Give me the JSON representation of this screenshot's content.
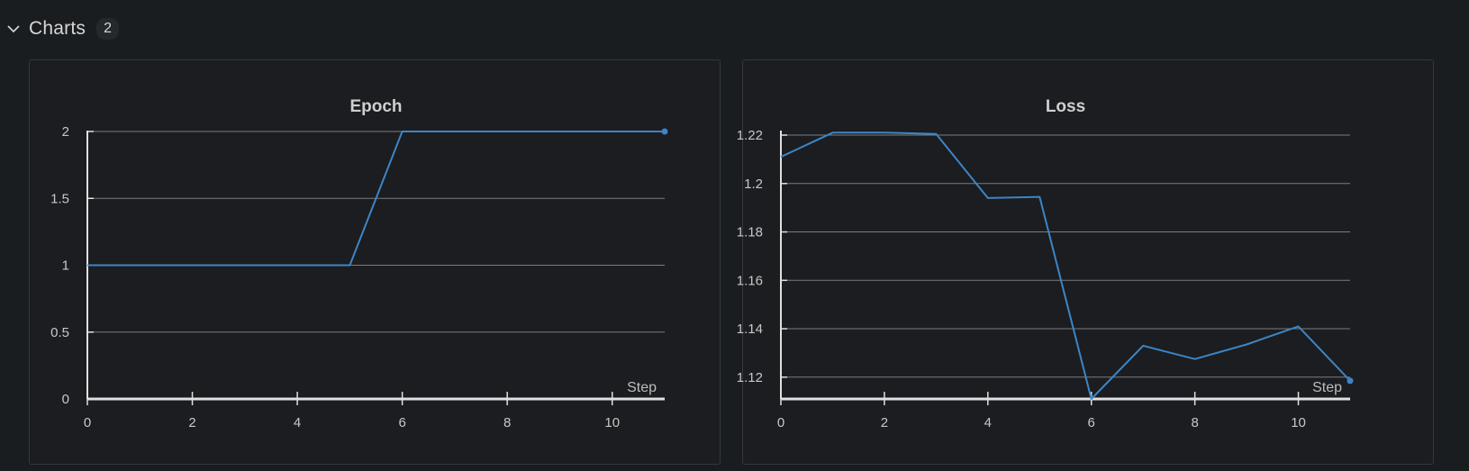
{
  "section": {
    "title": "Charts",
    "count": "2",
    "chevron_icon": "chevron-down-icon"
  },
  "colors": {
    "background": "#1a1d1f",
    "card_border": "#34383c",
    "line": "#3d85c6",
    "grid": "#7a7d80",
    "axis": "#e0e0e0"
  },
  "chart_data": [
    {
      "type": "line",
      "title": "Epoch",
      "xlabel": "Step",
      "ylabel": "",
      "xlim": [
        0,
        11
      ],
      "ylim": [
        0,
        2
      ],
      "xticks": [
        0,
        2,
        4,
        6,
        8,
        10
      ],
      "yticks": [
        0,
        0.5,
        1,
        1.5,
        2
      ],
      "grid": true,
      "series": [
        {
          "x": [
            0,
            1,
            2,
            3,
            4,
            5,
            6,
            7,
            8,
            9,
            10,
            11
          ],
          "y": [
            1,
            1,
            1,
            1,
            1,
            1,
            2,
            2,
            2,
            2,
            2,
            2
          ]
        }
      ]
    },
    {
      "type": "line",
      "title": "Loss",
      "xlabel": "Step",
      "ylabel": "",
      "xlim": [
        0,
        11
      ],
      "ylim": [
        1.111,
        1.2215
      ],
      "xticks": [
        0,
        2,
        4,
        6,
        8,
        10
      ],
      "yticks": [
        1.12,
        1.14,
        1.16,
        1.18,
        1.2,
        1.22
      ],
      "grid": true,
      "series": [
        {
          "x": [
            0,
            1,
            2,
            3,
            4,
            5,
            6,
            7,
            8,
            9,
            10,
            11
          ],
          "y": [
            1.211,
            1.221,
            1.221,
            1.2205,
            1.194,
            1.1945,
            1.111,
            1.133,
            1.1275,
            1.1335,
            1.141,
            1.1185
          ]
        }
      ]
    }
  ]
}
